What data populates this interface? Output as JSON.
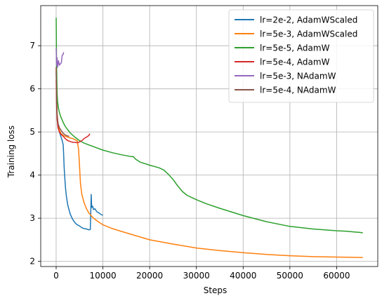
{
  "chart_data": {
    "type": "line",
    "title": "",
    "xlabel": "Steps",
    "ylabel": "Training loss",
    "xlim": [
      -3300,
      68800
    ],
    "ylim": [
      1.88,
      7.93
    ],
    "xticks": [
      0,
      10000,
      20000,
      30000,
      40000,
      50000,
      60000
    ],
    "xtick_labels": [
      "0",
      "10000",
      "20000",
      "30000",
      "40000",
      "50000",
      "60000"
    ],
    "yticks": [
      2,
      3,
      4,
      5,
      6,
      7
    ],
    "ytick_labels": [
      "2",
      "3",
      "4",
      "5",
      "6",
      "7"
    ],
    "grid": true,
    "legend_position": "top-right",
    "series": [
      {
        "name": "lr=2e-2, AdamWScaled",
        "color": "#1f77b4",
        "x": [
          0,
          100,
          200,
          400,
          700,
          1000,
          1300,
          1500,
          1600,
          1700,
          1800,
          2000,
          2200,
          2500,
          3000,
          3500,
          4000,
          4500,
          5000,
          5500,
          6000,
          6500,
          7000,
          7300,
          7400,
          7500,
          7600,
          7800,
          8000,
          8300,
          8700,
          9200,
          9700,
          10000
        ],
        "y": [
          6.4,
          5.7,
          5.4,
          5.15,
          5.0,
          4.9,
          4.8,
          4.7,
          4.5,
          4.2,
          4.0,
          3.7,
          3.5,
          3.3,
          3.1,
          2.98,
          2.9,
          2.85,
          2.82,
          2.78,
          2.76,
          2.75,
          2.73,
          2.74,
          3.1,
          3.55,
          3.25,
          3.28,
          3.2,
          3.22,
          3.15,
          3.12,
          3.08,
          3.07
        ]
      },
      {
        "name": "lr=5e-3, AdamWScaled",
        "color": "#ff7f0e",
        "x": [
          0,
          100,
          200,
          400,
          700,
          1000,
          1500,
          2000,
          2500,
          3000,
          3500,
          4000,
          4500,
          4800,
          5000,
          5200,
          5500,
          6000,
          6500,
          7000,
          8000,
          9000,
          10000,
          12000,
          15000,
          20000,
          25000,
          30000,
          35000,
          40000,
          45000,
          50000,
          55000,
          60000,
          65000,
          65600
        ],
        "y": [
          6.5,
          5.8,
          5.45,
          5.2,
          5.05,
          4.97,
          4.92,
          4.9,
          4.88,
          4.86,
          4.85,
          4.82,
          4.8,
          4.6,
          4.2,
          3.8,
          3.55,
          3.35,
          3.22,
          3.12,
          3.0,
          2.92,
          2.85,
          2.76,
          2.66,
          2.5,
          2.4,
          2.31,
          2.25,
          2.2,
          2.16,
          2.13,
          2.11,
          2.1,
          2.09,
          2.09
        ]
      },
      {
        "name": "lr=5e-5, AdamW",
        "color": "#2ca02c",
        "x": [
          0,
          100,
          200,
          300,
          500,
          700,
          1000,
          1500,
          2000,
          3000,
          4000,
          5000,
          6000,
          8000,
          10000,
          12000,
          14000,
          16000,
          16500,
          17000,
          18000,
          20000,
          22000,
          23000,
          24000,
          25000,
          26000,
          27000,
          28000,
          30000,
          32000,
          35000,
          40000,
          45000,
          50000,
          55000,
          60000,
          62000,
          65000,
          65600
        ],
        "y": [
          7.65,
          6.5,
          5.9,
          5.7,
          5.55,
          5.45,
          5.35,
          5.22,
          5.12,
          4.98,
          4.88,
          4.8,
          4.74,
          4.66,
          4.58,
          4.52,
          4.47,
          4.43,
          4.43,
          4.37,
          4.3,
          4.23,
          4.17,
          4.12,
          4.02,
          3.9,
          3.75,
          3.62,
          3.53,
          3.43,
          3.34,
          3.23,
          3.06,
          2.92,
          2.81,
          2.75,
          2.71,
          2.7,
          2.67,
          2.66
        ]
      },
      {
        "name": "lr=5e-4, AdamW",
        "color": "#d62728",
        "x": [
          0,
          100,
          200,
          400,
          700,
          1000,
          1500,
          2000,
          2500,
          3000,
          3500,
          4000,
          4500,
          5000,
          5500,
          6000,
          6500,
          7000,
          7200
        ],
        "y": [
          6.2,
          5.6,
          5.3,
          5.1,
          5.0,
          4.95,
          4.9,
          4.84,
          4.8,
          4.78,
          4.76,
          4.76,
          4.75,
          4.77,
          4.8,
          4.85,
          4.88,
          4.92,
          4.96
        ]
      },
      {
        "name": "lr=5e-3, NAdamW",
        "color": "#9467bd",
        "x": [
          0,
          100,
          200,
          300,
          500,
          700,
          900,
          1100,
          1300,
          1500,
          1600
        ],
        "y": [
          6.95,
          6.55,
          6.72,
          6.5,
          6.65,
          6.55,
          6.58,
          6.6,
          6.78,
          6.8,
          6.85
        ]
      },
      {
        "name": "lr=5e-4, NAdamW",
        "color": "#8c564b",
        "x": [
          0,
          100,
          200,
          400,
          700,
          1000,
          1300,
          1600,
          2000,
          2400,
          2800
        ],
        "y": [
          6.5,
          5.8,
          5.4,
          5.2,
          5.1,
          5.05,
          5.0,
          4.96,
          4.93,
          4.91,
          4.9
        ]
      }
    ]
  }
}
